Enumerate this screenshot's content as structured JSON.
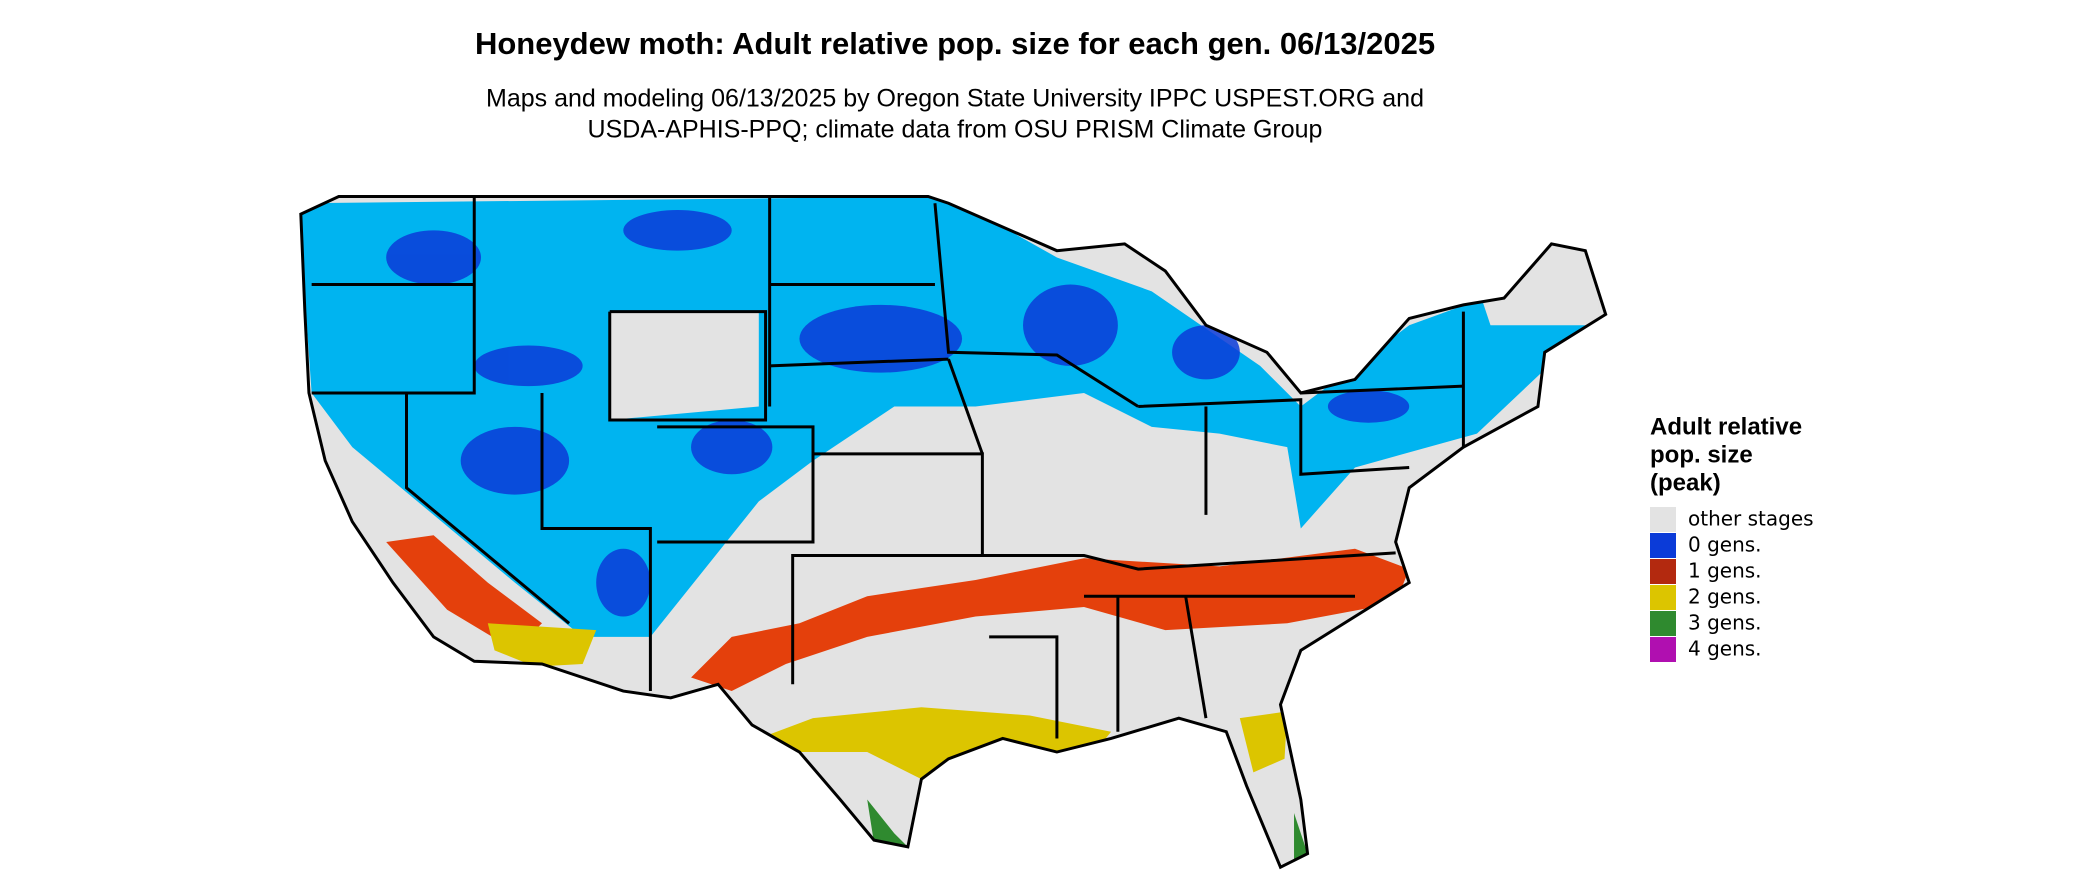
{
  "header": {
    "title": "Honeydew moth: Adult relative pop. size for each gen. 06/13/2025",
    "subtitle": [
      "Maps and modeling 06/13/2025 by Oregon State University IPPC USPEST.ORG and",
      "USDA-APHIS-PPQ; climate data from OSU PRISM Climate Group"
    ]
  },
  "legend": {
    "title": [
      "Adult relative",
      "pop. size",
      "(peak)"
    ],
    "items": [
      {
        "label": "other stages",
        "color": "#e3e3e3"
      },
      {
        "label": "0 gens.",
        "color": "#0b3bd8"
      },
      {
        "label": "1 gens.",
        "color": "#b3290f"
      },
      {
        "label": "2 gens.",
        "color": "#dcc500"
      },
      {
        "label": "3 gens.",
        "color": "#2f8a2f"
      },
      {
        "label": "4 gens.",
        "color": "#b00fb0"
      }
    ]
  }
}
